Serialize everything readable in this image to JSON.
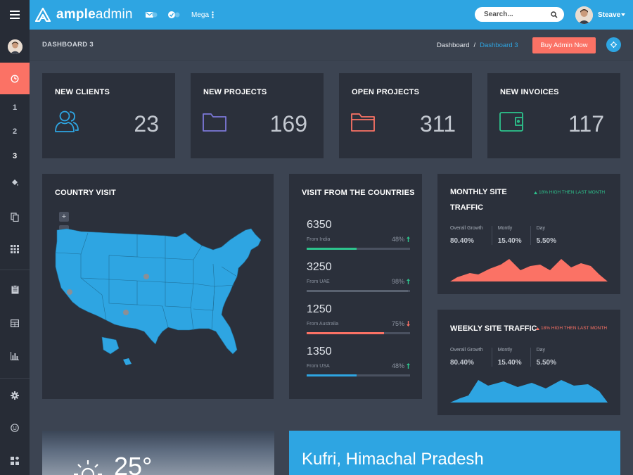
{
  "brand": {
    "bold": "ample",
    "light": "admin"
  },
  "topbar": {
    "mega_label": "Mega"
  },
  "search": {
    "placeholder": "Search..."
  },
  "user": {
    "name": "Steave"
  },
  "sidebar": {
    "numbers": [
      "1",
      "2",
      "3"
    ]
  },
  "page": {
    "title": "DASHBOARD 3"
  },
  "breadcrumb": {
    "home": "Dashboard",
    "separator": "/",
    "current": "Dashboard 3"
  },
  "buy_button": {
    "label": "Buy Admin Now"
  },
  "stats": [
    {
      "title": "NEW CLIENTS",
      "value": "23",
      "icon": "users-icon",
      "color": "#2ea5e2"
    },
    {
      "title": "NEW PROJECTS",
      "value": "169",
      "icon": "folder-icon",
      "color": "#7c78d9"
    },
    {
      "title": "OPEN PROJECTS",
      "value": "311",
      "icon": "folder-open-icon",
      "color": "#fb7265"
    },
    {
      "title": "NEW INVOICES",
      "value": "117",
      "icon": "wallet-icon",
      "color": "#2dc48d"
    }
  ],
  "country_visit": {
    "title": "COUNTRY VISIT",
    "zoom_in": "+",
    "zoom_out": "−"
  },
  "countries": {
    "title": "VISIT FROM THE COUNTRIES",
    "items": [
      {
        "value": "6350",
        "from": "From India",
        "percent": "48%",
        "fill": 0.48,
        "color": "#2dc48d",
        "trend": "up"
      },
      {
        "value": "3250",
        "from": "From UAE",
        "percent": "98%",
        "fill": 0.98,
        "color": "#5a6270",
        "trend": "up"
      },
      {
        "value": "1250",
        "from": "From Australia",
        "percent": "75%",
        "fill": 0.75,
        "color": "#fb7265",
        "trend": "down"
      },
      {
        "value": "1350",
        "from": "From USA",
        "percent": "48%",
        "fill": 0.48,
        "color": "#2ea5e2",
        "trend": "up"
      }
    ]
  },
  "monthly": {
    "title_line1": "MONTHLY SITE",
    "title_line2": "TRAFFIC",
    "note": "18% HIGH THEN LAST MONTH",
    "stats": [
      {
        "label": "Overall Growth",
        "value": "80.40%"
      },
      {
        "label": "Montly",
        "value": "15.40%"
      },
      {
        "label": "Day",
        "value": "5.50%"
      }
    ],
    "color": "#fb7265"
  },
  "weekly": {
    "title": "WEEKLY SITE TRAFFIC",
    "note": "18% HIGH THEN LAST MONTH",
    "stats": [
      {
        "label": "Overall Growth",
        "value": "80.40%"
      },
      {
        "label": "Montly",
        "value": "15.40%"
      },
      {
        "label": "Day",
        "value": "5.50%"
      }
    ],
    "color": "#2ea5e2"
  },
  "weather": {
    "temperature": "25°"
  },
  "location": {
    "name": "Kufri, Himachal Pradesh"
  }
}
